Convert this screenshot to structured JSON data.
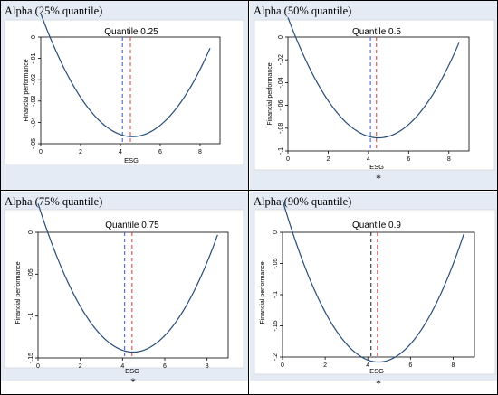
{
  "panels": [
    {
      "header": "Alpha (25% quantile)",
      "footnote": "",
      "chart_data": {
        "type": "line",
        "title": "Quantile 0.25",
        "xlabel": "ESG",
        "ylabel": "Financial performance",
        "xlim": [
          0,
          9
        ],
        "ylim": [
          -0.05,
          0.0
        ],
        "xticks": [
          0,
          2,
          4,
          6,
          8
        ],
        "xtick_labels": [
          "0",
          "2",
          "4",
          "6",
          "8"
        ],
        "yticks": [
          0,
          -0.01,
          -0.02,
          -0.03,
          -0.04,
          -0.05
        ],
        "ytick_labels": [
          "0",
          "-.01",
          "-.02",
          "-.03",
          "-.04",
          "-.05"
        ],
        "curve": {
          "x_start": 0.0,
          "x_end": 8.5,
          "vertex_x": 4.6,
          "vertex_y": -0.0467,
          "y_at_end": -0.0052
        },
        "vlines": [
          {
            "x": 4.1,
            "color": "#3b4fd6",
            "style": "dashed"
          },
          {
            "x": 4.5,
            "color": "#d63b3b",
            "style": "dashed"
          }
        ],
        "line_color": "#274c7a",
        "grid": false
      }
    },
    {
      "header": "Alpha (50% quantile)",
      "footnote": "*",
      "chart_data": {
        "type": "line",
        "title": "Quantile 0.5",
        "xlabel": "ESG",
        "ylabel": "Financial performance",
        "xlim": [
          0,
          9
        ],
        "ylim": [
          -0.1,
          0.0
        ],
        "xticks": [
          0,
          2,
          4,
          6,
          8
        ],
        "xtick_labels": [
          "0",
          "2",
          "4",
          "6",
          "8"
        ],
        "yticks": [
          0,
          -0.02,
          -0.04,
          -0.06,
          -0.08,
          -0.1
        ],
        "ytick_labels": [
          "0",
          "-.02",
          "-.04",
          "-.06",
          "-.08",
          "-.1"
        ],
        "curve": {
          "x_start": 0.0,
          "x_end": 8.5,
          "vertex_x": 4.5,
          "vertex_y": -0.0885,
          "y_at_end": -0.005
        },
        "vlines": [
          {
            "x": 4.1,
            "color": "#3b4fd6",
            "style": "dashed"
          },
          {
            "x": 4.4,
            "color": "#d63b3b",
            "style": "dashed"
          }
        ],
        "line_color": "#274c7a",
        "grid": false
      }
    },
    {
      "header": "Alpha (75% quantile)",
      "footnote": "*",
      "chart_data": {
        "type": "line",
        "title": "Quantile 0.75",
        "xlabel": "ESG",
        "ylabel": "Financial performance",
        "xlim": [
          0,
          9
        ],
        "ylim": [
          -0.15,
          0.0
        ],
        "xticks": [
          0,
          2,
          4,
          6,
          8
        ],
        "xtick_labels": [
          "0",
          "2",
          "4",
          "6",
          "8"
        ],
        "yticks": [
          0,
          -0.05,
          -0.1,
          -0.15
        ],
        "ytick_labels": [
          "0",
          "-.05",
          "-.1",
          "-.15"
        ],
        "curve": {
          "x_start": 0.0,
          "x_end": 8.5,
          "vertex_x": 4.5,
          "vertex_y": -0.143,
          "y_at_end": -0.003
        },
        "vlines": [
          {
            "x": 4.1,
            "color": "#3b4fd6",
            "style": "dashed"
          },
          {
            "x": 4.45,
            "color": "#d63b3b",
            "style": "dashed"
          }
        ],
        "line_color": "#274c7a",
        "grid": false
      }
    },
    {
      "header": "Alpha (90% quantile)",
      "footnote": "*",
      "chart_data": {
        "type": "line",
        "title": "Quantile 0.9",
        "xlabel": "ESG",
        "ylabel": "Financial performance",
        "xlim": [
          0,
          9
        ],
        "ylim": [
          -0.2,
          0.0
        ],
        "xticks": [
          0,
          2,
          4,
          6,
          8
        ],
        "xtick_labels": [
          "0",
          "2",
          "4",
          "6",
          "8"
        ],
        "yticks": [
          0,
          -0.05,
          -0.1,
          -0.15,
          -0.2
        ],
        "ytick_labels": [
          "0",
          "-.05",
          "-.1",
          "-.15",
          "-.2"
        ],
        "curve": {
          "x_start": 0.0,
          "x_end": 8.5,
          "vertex_x": 4.5,
          "vertex_y": -0.208,
          "y_at_end": -0.003
        },
        "vlines": [
          {
            "x": 4.15,
            "color": "#1a1a1a",
            "style": "dashed"
          },
          {
            "x": 4.45,
            "color": "#d63b3b",
            "style": "dashed"
          }
        ],
        "line_color": "#274c7a",
        "grid": false
      }
    }
  ]
}
